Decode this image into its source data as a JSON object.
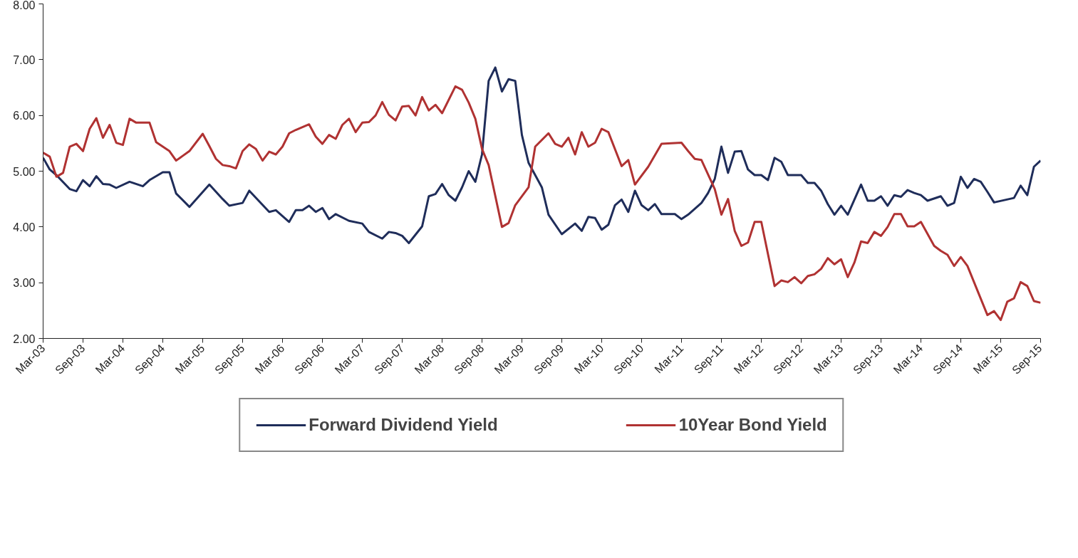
{
  "chart_data": {
    "type": "line",
    "legend": "bottom",
    "grid": false,
    "line_style": "solid",
    "marker": "none",
    "xlim": [
      "2003-03",
      "2015-09"
    ],
    "xticks": [
      {
        "value": "2003-03",
        "label": "Mar-03"
      },
      {
        "value": "2003-09",
        "label": "Sep-03"
      },
      {
        "value": "2004-03",
        "label": "Mar-04"
      },
      {
        "value": "2004-09",
        "label": "Sep-04"
      },
      {
        "value": "2005-03",
        "label": "Mar-05"
      },
      {
        "value": "2005-09",
        "label": "Sep-05"
      },
      {
        "value": "2006-03",
        "label": "Mar-06"
      },
      {
        "value": "2006-09",
        "label": "Sep-06"
      },
      {
        "value": "2007-03",
        "label": "Mar-07"
      },
      {
        "value": "2007-09",
        "label": "Sep-07"
      },
      {
        "value": "2008-03",
        "label": "Mar-08"
      },
      {
        "value": "2008-09",
        "label": "Sep-08"
      },
      {
        "value": "2009-03",
        "label": "Mar-09"
      },
      {
        "value": "2009-09",
        "label": "Sep-09"
      },
      {
        "value": "2010-03",
        "label": "Mar-10"
      },
      {
        "value": "2010-09",
        "label": "Sep-10"
      },
      {
        "value": "2011-03",
        "label": "Mar-11"
      },
      {
        "value": "2011-09",
        "label": "Sep-11"
      },
      {
        "value": "2012-03",
        "label": "Mar-12"
      },
      {
        "value": "2012-09",
        "label": "Sep-12"
      },
      {
        "value": "2013-03",
        "label": "Mar-13"
      },
      {
        "value": "2013-09",
        "label": "Sep-13"
      },
      {
        "value": "2014-03",
        "label": "Mar-14"
      },
      {
        "value": "2014-09",
        "label": "Sep-14"
      },
      {
        "value": "2015-03",
        "label": "Mar-15"
      },
      {
        "value": "2015-09",
        "label": "Sep-15"
      }
    ],
    "ylim": [
      2,
      8
    ],
    "yticks": [
      {
        "value": 2,
        "label": "2.00"
      },
      {
        "value": 3,
        "label": "3.00"
      },
      {
        "value": 4,
        "label": "4.00"
      },
      {
        "value": 5,
        "label": "5.00"
      },
      {
        "value": 6,
        "label": "6.00"
      },
      {
        "value": 7,
        "label": "7.00"
      },
      {
        "value": 8,
        "label": "8.00"
      }
    ],
    "series": [
      {
        "name": "Forward Dividend Yield",
        "color": "#1f2d5a",
        "x": [
          "2003-03",
          "2003-04",
          "2003-05",
          "2003-07",
          "2003-08",
          "2003-09",
          "2003-10",
          "2003-11",
          "2003-12",
          "2004-01",
          "2004-02",
          "2004-04",
          "2004-06",
          "2004-07",
          "2004-09",
          "2004-10",
          "2004-11",
          "2005-01",
          "2005-04",
          "2005-06",
          "2005-07",
          "2005-09",
          "2005-10",
          "2006-01",
          "2006-02",
          "2006-04",
          "2006-05",
          "2006-06",
          "2006-07",
          "2006-08",
          "2006-09",
          "2006-10",
          "2006-11",
          "2007-01",
          "2007-03",
          "2007-04",
          "2007-06",
          "2007-07",
          "2007-08",
          "2007-09",
          "2007-10",
          "2007-12",
          "2008-01",
          "2008-02",
          "2008-03",
          "2008-04",
          "2008-05",
          "2008-06",
          "2008-07",
          "2008-08",
          "2008-09",
          "2008-10",
          "2008-11",
          "2008-12",
          "2009-01",
          "2009-02",
          "2009-03",
          "2009-04",
          "2009-06",
          "2009-07",
          "2009-09",
          "2009-11",
          "2009-12",
          "2010-01",
          "2010-02",
          "2010-03",
          "2010-04",
          "2010-05",
          "2010-06",
          "2010-07",
          "2010-08",
          "2010-09",
          "2010-10",
          "2010-11",
          "2010-12",
          "2011-02",
          "2011-03",
          "2011-04",
          "2011-06",
          "2011-07",
          "2011-08",
          "2011-09",
          "2011-10",
          "2011-11",
          "2011-12",
          "2012-01",
          "2012-02",
          "2012-03",
          "2012-04",
          "2012-05",
          "2012-06",
          "2012-07",
          "2012-09",
          "2012-10",
          "2012-11",
          "2012-12",
          "2013-01",
          "2013-02",
          "2013-03",
          "2013-04",
          "2013-06",
          "2013-07",
          "2013-08",
          "2013-09",
          "2013-10",
          "2013-11",
          "2013-12",
          "2014-01",
          "2014-02",
          "2014-03",
          "2014-04",
          "2014-06",
          "2014-07",
          "2014-08",
          "2014-09",
          "2014-10",
          "2014-11",
          "2014-12",
          "2015-01",
          "2015-02",
          "2015-05",
          "2015-06",
          "2015-07",
          "2015-08",
          "2015-09"
        ],
        "values": [
          5.24,
          5.03,
          4.93,
          4.68,
          4.64,
          4.84,
          4.73,
          4.91,
          4.77,
          4.76,
          4.7,
          4.81,
          4.73,
          4.84,
          4.98,
          4.98,
          4.6,
          4.36,
          4.76,
          4.5,
          4.38,
          4.43,
          4.65,
          4.27,
          4.3,
          4.09,
          4.3,
          4.3,
          4.38,
          4.27,
          4.34,
          4.14,
          4.23,
          4.11,
          4.06,
          3.91,
          3.79,
          3.91,
          3.89,
          3.84,
          3.71,
          4.01,
          4.55,
          4.59,
          4.77,
          4.57,
          4.47,
          4.71,
          5.0,
          4.81,
          5.3,
          6.62,
          6.86,
          6.43,
          6.65,
          6.62,
          5.65,
          5.15,
          4.71,
          4.22,
          3.87,
          4.06,
          3.93,
          4.18,
          4.16,
          3.95,
          4.04,
          4.39,
          4.49,
          4.27,
          4.65,
          4.39,
          4.3,
          4.41,
          4.23,
          4.23,
          4.14,
          4.22,
          4.43,
          4.61,
          4.86,
          5.44,
          4.97,
          5.35,
          5.36,
          5.03,
          4.93,
          4.93,
          4.84,
          5.24,
          5.17,
          4.93,
          4.93,
          4.79,
          4.79,
          4.65,
          4.41,
          4.22,
          4.38,
          4.22,
          4.76,
          4.47,
          4.47,
          4.55,
          4.38,
          4.57,
          4.54,
          4.66,
          4.61,
          4.57,
          4.47,
          4.55,
          4.38,
          4.43,
          4.9,
          4.7,
          4.86,
          4.81,
          4.63,
          4.44,
          4.52,
          4.74,
          4.57,
          5.08,
          5.19
        ]
      },
      {
        "name": "10Year Bond Yield",
        "color": "#b03232",
        "x": [
          "2003-03",
          "2003-04",
          "2003-05",
          "2003-06",
          "2003-07",
          "2003-08",
          "2003-09",
          "2003-10",
          "2003-11",
          "2003-12",
          "2004-01",
          "2004-02",
          "2004-03",
          "2004-04",
          "2004-05",
          "2004-07",
          "2004-08",
          "2004-10",
          "2004-11",
          "2005-01",
          "2005-03",
          "2005-04",
          "2005-05",
          "2005-06",
          "2005-07",
          "2005-08",
          "2005-09",
          "2005-10",
          "2005-11",
          "2005-12",
          "2006-01",
          "2006-02",
          "2006-03",
          "2006-04",
          "2006-05",
          "2006-07",
          "2006-08",
          "2006-09",
          "2006-10",
          "2006-11",
          "2006-12",
          "2007-01",
          "2007-02",
          "2007-03",
          "2007-04",
          "2007-05",
          "2007-06",
          "2007-07",
          "2007-08",
          "2007-09",
          "2007-10",
          "2007-11",
          "2007-12",
          "2008-01",
          "2008-02",
          "2008-03",
          "2008-05",
          "2008-06",
          "2008-07",
          "2008-08",
          "2008-09",
          "2008-10",
          "2008-12",
          "2009-01",
          "2009-02",
          "2009-04",
          "2009-05",
          "2009-07",
          "2009-08",
          "2009-09",
          "2009-10",
          "2009-11",
          "2009-12",
          "2010-01",
          "2010-02",
          "2010-03",
          "2010-04",
          "2010-06",
          "2010-07",
          "2010-08",
          "2010-10",
          "2010-12",
          "2011-03",
          "2011-04",
          "2011-05",
          "2011-06",
          "2011-08",
          "2011-09",
          "2011-10",
          "2011-11",
          "2011-12",
          "2012-01",
          "2012-02",
          "2012-03",
          "2012-05",
          "2012-06",
          "2012-07",
          "2012-08",
          "2012-09",
          "2012-10",
          "2012-11",
          "2012-12",
          "2013-01",
          "2013-02",
          "2013-03",
          "2013-04",
          "2013-05",
          "2013-06",
          "2013-07",
          "2013-08",
          "2013-09",
          "2013-10",
          "2013-11",
          "2013-12",
          "2014-01",
          "2014-02",
          "2014-03",
          "2014-05",
          "2014-06",
          "2014-07",
          "2014-08",
          "2014-09",
          "2014-10",
          "2015-01",
          "2015-02",
          "2015-03",
          "2015-04",
          "2015-05",
          "2015-06",
          "2015-07",
          "2015-08",
          "2015-09"
        ],
        "values": [
          5.33,
          5.26,
          4.9,
          4.97,
          5.44,
          5.49,
          5.36,
          5.76,
          5.95,
          5.6,
          5.83,
          5.51,
          5.47,
          5.94,
          5.87,
          5.87,
          5.52,
          5.36,
          5.19,
          5.36,
          5.67,
          5.45,
          5.22,
          5.11,
          5.09,
          5.05,
          5.36,
          5.48,
          5.4,
          5.19,
          5.35,
          5.3,
          5.44,
          5.68,
          5.74,
          5.84,
          5.62,
          5.49,
          5.65,
          5.58,
          5.83,
          5.94,
          5.7,
          5.87,
          5.88,
          6.0,
          6.24,
          6.01,
          5.91,
          6.16,
          6.17,
          6.0,
          6.33,
          6.09,
          6.19,
          6.04,
          6.52,
          6.46,
          6.23,
          5.94,
          5.4,
          5.11,
          4.0,
          4.07,
          4.39,
          4.71,
          5.44,
          5.68,
          5.49,
          5.44,
          5.6,
          5.3,
          5.7,
          5.44,
          5.51,
          5.76,
          5.7,
          5.09,
          5.2,
          4.76,
          5.08,
          5.49,
          5.51,
          5.36,
          5.22,
          5.2,
          4.68,
          4.22,
          4.5,
          3.93,
          3.66,
          3.72,
          4.09,
          4.09,
          2.94,
          3.04,
          3.01,
          3.1,
          2.99,
          3.12,
          3.15,
          3.25,
          3.44,
          3.33,
          3.42,
          3.1,
          3.36,
          3.74,
          3.71,
          3.91,
          3.84,
          4.0,
          4.23,
          4.23,
          4.01,
          4.01,
          4.09,
          3.66,
          3.57,
          3.5,
          3.3,
          3.46,
          3.3,
          2.42,
          2.49,
          2.33,
          2.66,
          2.72,
          3.01,
          2.94,
          2.67,
          2.64
        ]
      }
    ]
  }
}
